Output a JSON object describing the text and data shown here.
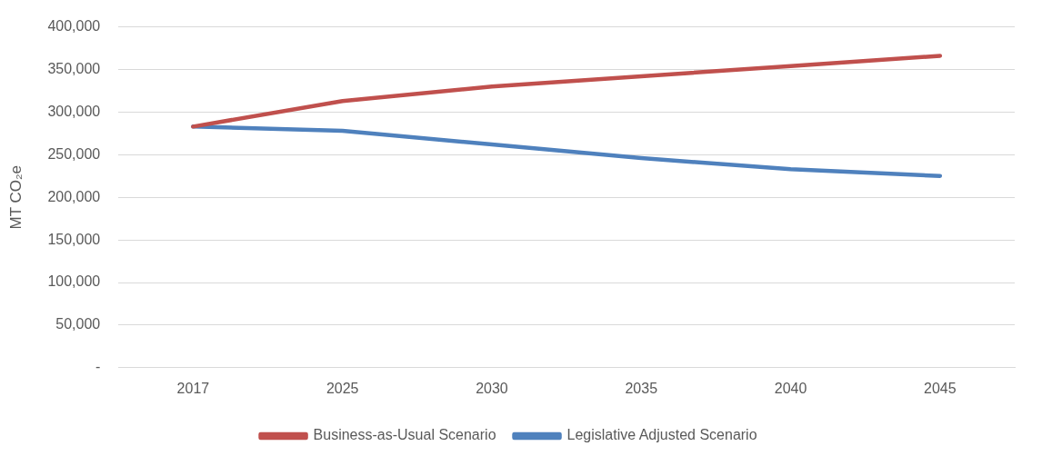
{
  "chart_data": {
    "type": "line",
    "ylabel": "MT CO₂e",
    "categories": [
      "2017",
      "2025",
      "2030",
      "2035",
      "2040",
      "2045"
    ],
    "series": [
      {
        "name": "Business-as-Usual Scenario",
        "color": "#c0504d",
        "values": [
          283000,
          313000,
          330000,
          342000,
          354000,
          366000
        ]
      },
      {
        "name": "Legislative Adjusted Scenario",
        "color": "#4f81bd",
        "values": [
          283000,
          278000,
          262000,
          246000,
          233000,
          225000
        ]
      }
    ],
    "ylim": [
      0,
      400000
    ],
    "yticks": [
      {
        "value": 0,
        "label": "-"
      },
      {
        "value": 50000,
        "label": "50,000"
      },
      {
        "value": 100000,
        "label": "100,000"
      },
      {
        "value": 150000,
        "label": "150,000"
      },
      {
        "value": 200000,
        "label": "200,000"
      },
      {
        "value": 250000,
        "label": "250,000"
      },
      {
        "value": 300000,
        "label": "300,000"
      },
      {
        "value": 350000,
        "label": "350,000"
      },
      {
        "value": 400000,
        "label": "400,000"
      }
    ],
    "grid": "y",
    "legend": "bottom",
    "marker": "none",
    "line_style": "solid"
  }
}
